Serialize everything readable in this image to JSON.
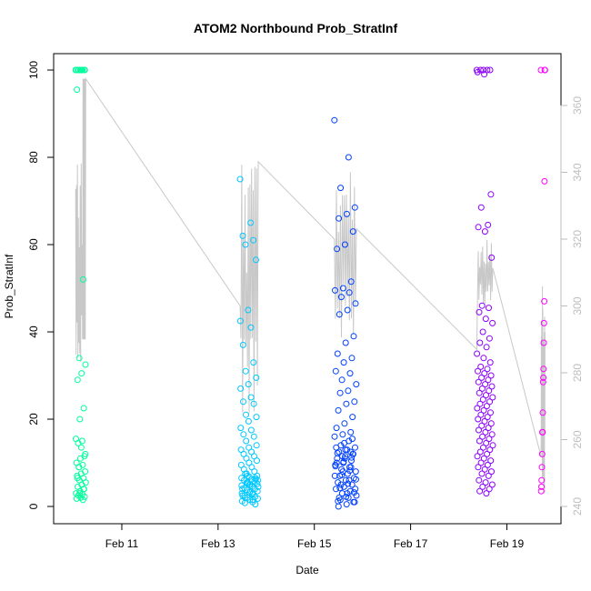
{
  "chart_data": {
    "type": "scatter",
    "title": "ATOM2 Northbound Prob_StratInf",
    "xlabel": "Date",
    "ylabel": "Prob_StratInf",
    "xlim": [
      "2018-02-09T19:00",
      "2018-02-19T22:00"
    ],
    "ylim": [
      0,
      100
    ],
    "x_ticks": [
      {
        "value": "2018-02-11",
        "label": "Feb 11"
      },
      {
        "value": "2018-02-13",
        "label": "Feb 13"
      },
      {
        "value": "2018-02-15",
        "label": "Feb 15"
      },
      {
        "value": "2018-02-17",
        "label": "Feb 17"
      },
      {
        "value": "2018-02-19",
        "label": "Feb 19"
      }
    ],
    "y_ticks": [
      0,
      20,
      40,
      60,
      80,
      100
    ],
    "y2_range": [
      240,
      368
    ],
    "y2_ticks": [
      240,
      260,
      280,
      300,
      320,
      340,
      360
    ],
    "y2_color": "#bebebe",
    "line_color": "#c8c8c8",
    "legend": "none",
    "grid": false,
    "flights": [
      {
        "color": "#00ff9c",
        "t0": "2018-02-10T01:00",
        "t1": "2018-02-10T06:00",
        "values": [
          100,
          100,
          100,
          100,
          100,
          100,
          100,
          100,
          100,
          100,
          95.5,
          52,
          34,
          32.5,
          30.5,
          29,
          22.5,
          20,
          15.5,
          15,
          14.5,
          11.5,
          11,
          10,
          9.5,
          9,
          8,
          7.5,
          7,
          6.5,
          6,
          5.5,
          5,
          4.5,
          4,
          3.5,
          3,
          2.8,
          2.5,
          2.2,
          2,
          1.8,
          1.5,
          9,
          12,
          13.5,
          6.5,
          4,
          3
        ]
      },
      {
        "color": "#00c8ff",
        "t0": "2018-02-13T11:00",
        "t1": "2018-02-13T20:00",
        "values": [
          75,
          65,
          62,
          61,
          60,
          56.5,
          45,
          42.5,
          41,
          37,
          33,
          31,
          29.5,
          28,
          27,
          25,
          24,
          23.5,
          21,
          20.5,
          19.5,
          18,
          17.5,
          16.5,
          16,
          15,
          14,
          13.5,
          13,
          12.5,
          12,
          11.5,
          11,
          10.5,
          10,
          9.5,
          9,
          8.5,
          8,
          7.5,
          7,
          6.8,
          6.5,
          6.2,
          6,
          5.8,
          5.5,
          5.2,
          5,
          4.8,
          4.5,
          4.2,
          4,
          3.8,
          3.5,
          3.2,
          3,
          2.8,
          2.5,
          2.2,
          2,
          1.8,
          1.5,
          1.2,
          1,
          0.8,
          0.5,
          7,
          6,
          5,
          4,
          3,
          2,
          6.5,
          5.5,
          4.5,
          3.5,
          2.5,
          1.5,
          7.5,
          6.2,
          5.2
        ]
      },
      {
        "color": "#0040ff",
        "t0": "2018-02-15T10:00",
        "t1": "2018-02-15T21:00",
        "values": [
          88.5,
          80,
          73,
          68.5,
          67,
          66,
          63,
          60,
          59,
          51.5,
          50,
          49.5,
          49,
          48,
          46.5,
          45,
          44,
          39,
          37.5,
          35,
          34,
          33,
          31,
          30.5,
          29,
          28,
          26.5,
          26,
          24,
          23.5,
          22,
          20.5,
          19,
          18,
          17,
          16.5,
          16,
          15,
          14,
          13.5,
          13,
          12.5,
          12,
          11.5,
          11,
          10.5,
          10,
          9.5,
          9,
          8.5,
          8,
          7.5,
          7,
          6.5,
          6,
          5.5,
          5,
          4.5,
          4,
          3.5,
          3,
          2.5,
          2,
          1.5,
          1,
          0.5,
          0,
          12,
          11,
          10,
          9,
          8,
          7,
          6,
          5,
          4,
          3,
          2,
          1,
          13,
          12.2,
          11.2,
          10.2,
          9.2,
          8.2,
          7.2,
          6.2,
          5.2,
          4.2,
          3.2,
          2.2,
          1.2,
          15.5,
          14.5,
          13.5,
          12.5,
          11.5
        ]
      },
      {
        "color": "#8c00ff",
        "t0": "2018-02-18T09:00",
        "t1": "2018-02-18T17:00",
        "values": [
          100,
          100,
          100,
          100,
          100,
          99.5,
          99,
          71.5,
          68.5,
          64.5,
          64,
          63,
          57,
          46,
          45.5,
          44.5,
          43,
          42,
          40,
          38.5,
          37.5,
          36.5,
          35,
          34,
          33,
          32,
          31.5,
          31,
          30.5,
          30,
          29.5,
          29,
          28.5,
          28,
          27.5,
          27,
          26.5,
          26,
          25.5,
          25,
          24.5,
          24,
          23.5,
          23,
          22.5,
          22,
          21.5,
          21,
          20.5,
          20,
          19.5,
          19,
          18.5,
          18,
          17.5,
          17,
          16.5,
          16,
          15.5,
          15,
          14.5,
          14,
          13.5,
          13,
          12.5,
          12,
          11.5,
          11,
          10.5,
          10,
          9.5,
          9,
          8.5,
          8,
          7.5,
          7,
          6,
          5.5,
          5,
          4.5,
          4,
          3.5,
          3
        ]
      },
      {
        "color": "#ff00ff",
        "t0": "2018-02-19T17:00",
        "t1": "2018-02-19T19:00",
        "values": [
          100,
          100,
          100,
          74.5,
          47,
          42,
          37.5,
          31.5,
          29.5,
          28.5,
          21.5,
          17,
          17,
          12,
          9,
          6,
          4.5,
          3.5
        ]
      }
    ]
  }
}
